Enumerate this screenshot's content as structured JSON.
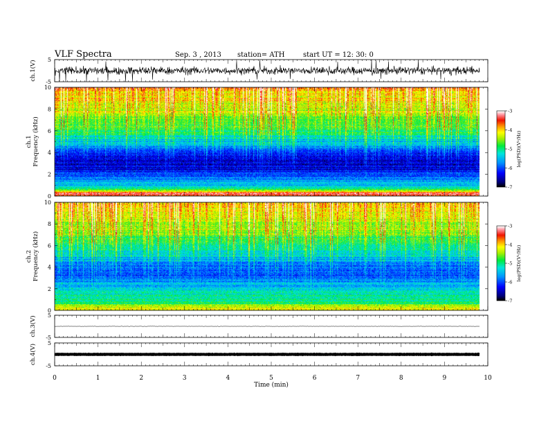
{
  "header": {
    "title": "VLF  Spectra",
    "date": "Sep. 3  , 2013",
    "station": "station= ATH",
    "start": "start  UT =   12: 30: 0"
  },
  "chart_data": [
    {
      "id": "ch1-waveform",
      "type": "line",
      "ylabel": "ch.1(V)",
      "ylim": [
        -5,
        5
      ],
      "yticks": [
        "5",
        "-5"
      ],
      "xlim": [
        0,
        10
      ],
      "data_end_min": 9.8,
      "signal": "noisy broadband waveform, mostly within about -3 to +3 V with spikes to the limits"
    },
    {
      "id": "ch1-spectrogram",
      "type": "heatmap",
      "ylabel": "ch.1\nFrequency  (kHz)",
      "xlim": [
        0,
        10
      ],
      "ylim": [
        0,
        10
      ],
      "yticks": [
        "0",
        "2",
        "4",
        "6",
        "8",
        "10"
      ],
      "colorbar": {
        "label": "log(PSD)(V²/Hz)",
        "range": [
          -7,
          -3
        ],
        "ticks": [
          "-3",
          "-4",
          "-5",
          "-6",
          "-7"
        ]
      },
      "profile_khz": [
        0,
        0.3,
        0.6,
        1.0,
        1.5,
        2.0,
        2.5,
        3.0,
        3.5,
        4.0,
        4.5,
        5.0,
        5.5,
        6.0,
        7.0,
        8.0,
        9.0,
        10.0
      ],
      "profile_logpsd": [
        -3.6,
        -3.4,
        -4.8,
        -5.4,
        -5.7,
        -6.0,
        -6.4,
        -6.5,
        -6.4,
        -6.2,
        -5.8,
        -5.6,
        -5.3,
        -5.0,
        -4.7,
        -4.4,
        -4.2,
        -4.0
      ]
    },
    {
      "id": "ch2-spectrogram",
      "type": "heatmap",
      "ylabel": "ch.2\nFrequency  (kHz)",
      "xlim": [
        0,
        10
      ],
      "ylim": [
        0,
        10
      ],
      "yticks": [
        "0",
        "2",
        "4",
        "6",
        "8",
        "10"
      ],
      "colorbar": {
        "label": "log(PSD)(V²/Hz)",
        "range": [
          -7,
          -3
        ],
        "ticks": [
          "-3",
          "-4",
          "-5",
          "-6",
          "-7"
        ]
      },
      "profile_khz": [
        0,
        0.3,
        0.6,
        1.0,
        1.5,
        2.0,
        2.5,
        3.0,
        3.5,
        4.0,
        4.5,
        5.0,
        5.5,
        6.0,
        7.0,
        8.0,
        9.0,
        10.0
      ],
      "profile_logpsd": [
        -4.4,
        -4.2,
        -4.7,
        -5.0,
        -5.2,
        -5.4,
        -5.6,
        -5.9,
        -6.0,
        -5.9,
        -5.7,
        -5.5,
        -5.3,
        -5.1,
        -4.8,
        -4.5,
        -4.3,
        -4.2
      ]
    },
    {
      "id": "ch3-waveform",
      "type": "line",
      "ylabel": "ch.3(V)",
      "ylim": [
        -5,
        5
      ],
      "yticks": [
        "5",
        "-5"
      ],
      "xlim": [
        0,
        10
      ],
      "data_end_min": 9.8,
      "signal": "near-flat trace at about 0 V"
    },
    {
      "id": "ch4-waveform",
      "type": "line",
      "ylabel": "ch.4(V)",
      "ylim": [
        -5,
        5
      ],
      "yticks": [
        "5",
        "-5"
      ],
      "xlim": [
        0,
        10
      ],
      "data_end_min": 9.8,
      "signal": "thick near-constant trace at about 0 V"
    }
  ],
  "xaxis": {
    "label": "Time  (min)",
    "ticks": [
      "0",
      "1",
      "2",
      "3",
      "4",
      "5",
      "6",
      "7",
      "8",
      "9",
      "10"
    ]
  },
  "colors": {
    "axis": "#000000",
    "trace": "#000000"
  }
}
